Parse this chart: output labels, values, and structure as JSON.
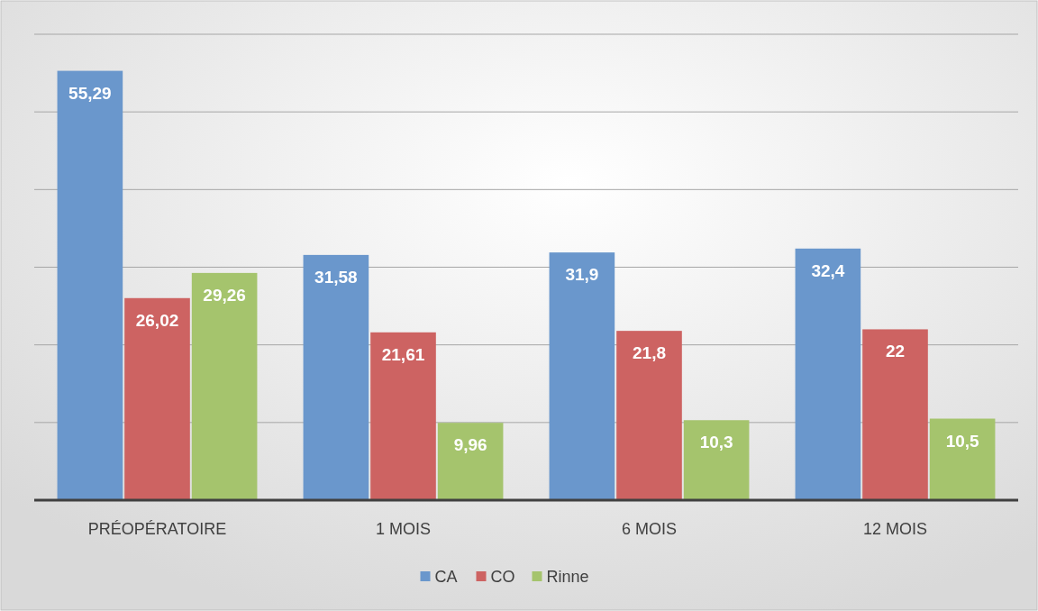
{
  "chart_data": {
    "type": "bar",
    "categories": [
      "PRÉOPÉRATOIRE",
      "1 MOIS",
      "6 MOIS",
      "12 MOIS"
    ],
    "series": [
      {
        "name": "CA",
        "color": "#6a97cc",
        "values": [
          55.29,
          31.58,
          31.9,
          32.4
        ],
        "value_labels": [
          "55,29",
          "31,58",
          "31,9",
          "32,4"
        ]
      },
      {
        "name": "CO",
        "color": "#cd6362",
        "values": [
          26.02,
          21.61,
          21.8,
          22
        ],
        "value_labels": [
          "26,02",
          "21,61",
          "21,8",
          "22"
        ]
      },
      {
        "name": "Rinne",
        "color": "#a5c46d",
        "values": [
          29.26,
          9.96,
          10.3,
          10.5
        ],
        "value_labels": [
          "29,26",
          "9,96",
          "10,3",
          "10,5"
        ]
      }
    ],
    "ylim": [
      0,
      60
    ],
    "yticks": [
      {
        "value": 0,
        "label": null
      },
      {
        "value": 10,
        "label": null
      },
      {
        "value": 20,
        "label": null
      },
      {
        "value": 30,
        "label": null
      },
      {
        "value": 40,
        "label": null
      },
      {
        "value": 50,
        "label": null
      },
      {
        "value": 60,
        "label": null
      }
    ],
    "grid": "y",
    "legend": "bottom",
    "tick_labels": "x"
  }
}
